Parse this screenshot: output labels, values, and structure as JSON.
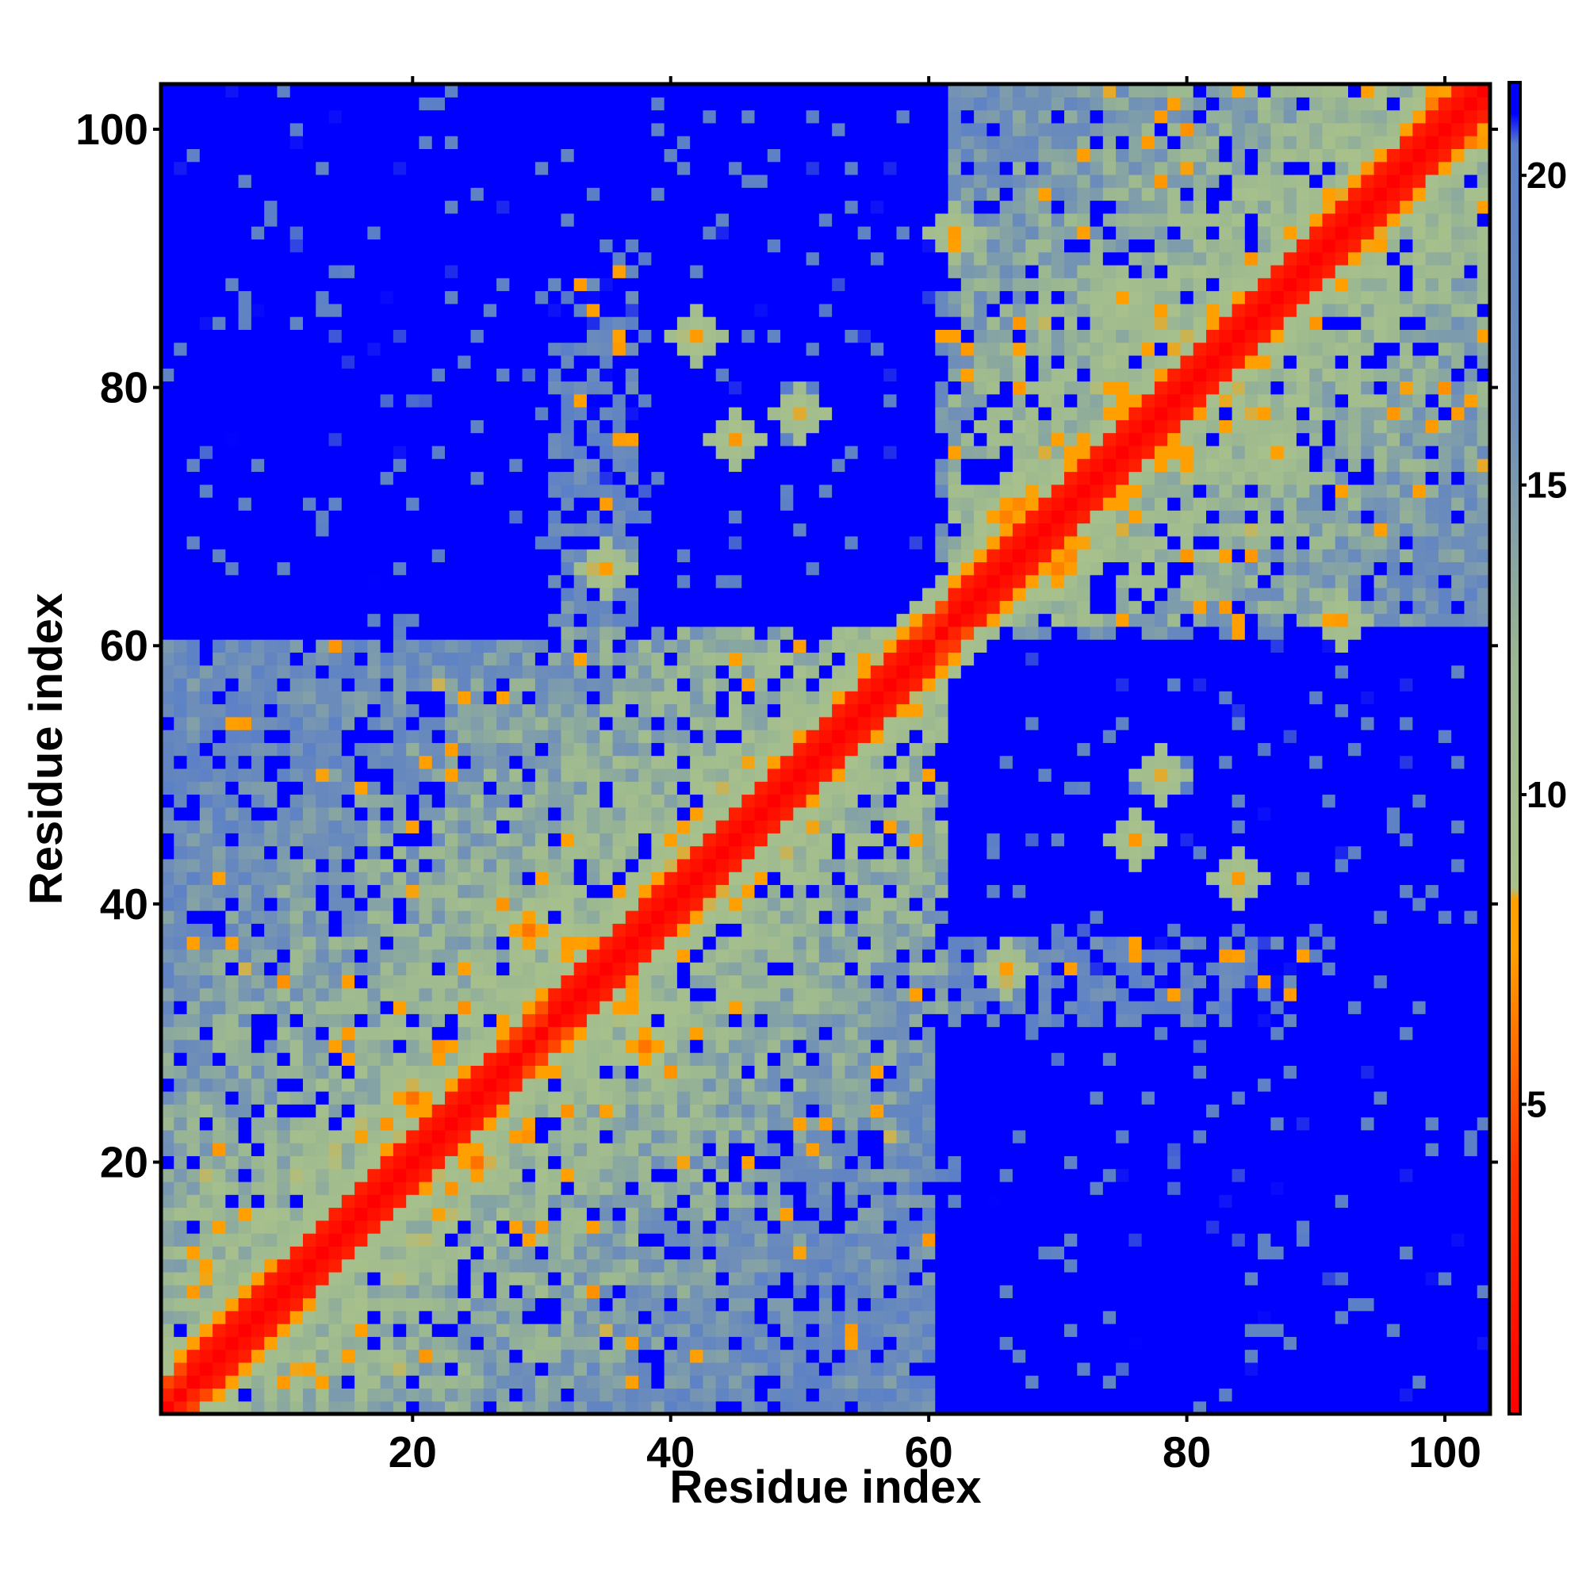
{
  "chart_data": {
    "type": "heatmap",
    "title": "",
    "xlabel": "Residue index",
    "ylabel": "Residue index",
    "n_residues": 103,
    "xlim": [
      0.5,
      103.5
    ],
    "ylim": [
      0.5,
      103.5
    ],
    "x_ticks": [
      20,
      40,
      60,
      80,
      100
    ],
    "y_ticks": [
      20,
      40,
      60,
      80,
      100
    ],
    "value_description": "pairwise residue distance, symmetric matrix, 0 on diagonal, saturates above ~21",
    "colorbar": {
      "range": [
        0,
        21.5
      ],
      "ticks": [
        5,
        10,
        15,
        20
      ],
      "stops": [
        {
          "value": 0,
          "color": "#ff0000"
        },
        {
          "value": 4,
          "color": "#ff3300"
        },
        {
          "value": 7.5,
          "color": "#ffa000"
        },
        {
          "value": 8.3,
          "color": "#ffa000"
        },
        {
          "value": 8.5,
          "color": "#a7c08c"
        },
        {
          "value": 12,
          "color": "#9cb890"
        },
        {
          "value": 16,
          "color": "#6f8fb8"
        },
        {
          "value": 20.5,
          "color": "#5a7fc8"
        },
        {
          "value": 21,
          "color": "#0000ff"
        },
        {
          "value": 21.5,
          "color": "#0000ff"
        }
      ]
    },
    "features": {
      "diagonal_band_width": 3,
      "helix_segments": [
        [
          3,
          28
        ],
        [
          31,
          60
        ],
        [
          62,
          103
        ]
      ],
      "near_domain": [
        [
          1,
          61
        ],
        [
          62,
          103
        ]
      ],
      "far_blocks": [
        {
          "rows": [
            62,
            103
          ],
          "cols": [
            1,
            27
          ]
        },
        {
          "rows": [
            1,
            30
          ],
          "cols": [
            61,
            103
          ]
        },
        {
          "rows": [
            62,
            103
          ],
          "cols": [
            38,
            60
          ]
        },
        {
          "rows": [
            1,
            61
          ],
          "cols": [
            90,
            103
          ]
        }
      ],
      "contact_clusters": [
        {
          "a": 32,
          "b": 37,
          "d": 6
        },
        {
          "a": 29,
          "b": 38,
          "d": 6
        },
        {
          "a": 66,
          "b": 70,
          "d": 6
        },
        {
          "a": 67,
          "b": 71,
          "d": 6
        },
        {
          "a": 20,
          "b": 25,
          "d": 6
        },
        {
          "a": 99,
          "b": 102,
          "d": 6
        },
        {
          "a": 35,
          "b": 66,
          "d": 7
        },
        {
          "a": 78,
          "b": 50,
          "d": 7
        },
        {
          "a": 45,
          "b": 76,
          "d": 7
        },
        {
          "a": 92,
          "b": 62,
          "d": 7
        },
        {
          "a": 87,
          "b": 75,
          "d": 7
        },
        {
          "a": 42,
          "b": 84,
          "d": 7
        }
      ]
    }
  }
}
